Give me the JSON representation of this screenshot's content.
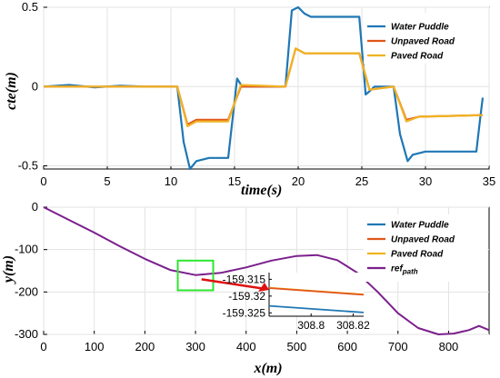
{
  "colors": {
    "water": "#1f77b4",
    "unpaved": "#e0561b",
    "paved": "#f0b323",
    "ref": "#7b1f8c",
    "zoom_box": "#2ee62e",
    "arrow": "#e01010"
  },
  "chart_data": [
    {
      "type": "line",
      "xlabel": "time(s)",
      "ylabel": "cte(m)",
      "xlim": [
        0,
        35
      ],
      "ylim": [
        -0.52,
        0.5
      ],
      "xticks": [
        0,
        5,
        10,
        15,
        20,
        25,
        30,
        35
      ],
      "yticks": [
        -0.5,
        0,
        0.5
      ],
      "ytick_labels": [
        "-0.5",
        "0",
        "0.5"
      ],
      "grid": true,
      "legend_position": "top-right",
      "series": [
        {
          "name": "Water Puddle",
          "x": [
            0,
            2,
            4,
            6,
            8,
            10.5,
            11,
            11.5,
            12,
            13,
            14.5,
            15.2,
            15.6,
            16,
            18,
            19,
            19.5,
            20,
            20.5,
            21,
            24.8,
            25.3,
            25.6,
            26,
            27.5,
            28,
            28.6,
            29,
            30,
            32,
            34,
            34.3,
            34.5
          ],
          "y": [
            0,
            0.01,
            -0.005,
            0.005,
            0,
            0,
            -0.35,
            -0.52,
            -0.47,
            -0.45,
            -0.45,
            0.05,
            0.0,
            0.0,
            0.0,
            0.0,
            0.48,
            0.5,
            0.46,
            0.44,
            0.44,
            -0.05,
            -0.03,
            0.0,
            0.0,
            -0.3,
            -0.47,
            -0.43,
            -0.41,
            -0.41,
            -0.41,
            -0.2,
            -0.07
          ]
        },
        {
          "name": "Unpaved Road",
          "x": [
            0,
            10.5,
            11.3,
            12,
            14.5,
            15.5,
            19,
            19.8,
            20.5,
            24.8,
            25.6,
            27.5,
            28.5,
            29.5,
            34.5
          ],
          "y": [
            0,
            0,
            -0.24,
            -0.21,
            -0.21,
            0.0,
            0.0,
            0.24,
            0.21,
            0.21,
            -0.02,
            0.0,
            -0.21,
            -0.19,
            -0.18
          ]
        },
        {
          "name": "Paved Road",
          "x": [
            0,
            10.5,
            11.3,
            12,
            14.5,
            15.5,
            19,
            19.8,
            20.5,
            24.8,
            25.6,
            27.5,
            28.5,
            29.5,
            34.5
          ],
          "y": [
            0,
            0,
            -0.25,
            -0.22,
            -0.22,
            0.01,
            0.0,
            0.24,
            0.21,
            0.21,
            -0.02,
            0.0,
            -0.22,
            -0.19,
            -0.18
          ]
        }
      ]
    },
    {
      "type": "line",
      "xlabel": "x(m)",
      "ylabel": "y(m)",
      "xlim": [
        0,
        880
      ],
      "ylim": [
        -300,
        0
      ],
      "xticks": [
        0,
        100,
        200,
        300,
        400,
        500,
        600,
        700,
        800
      ],
      "yticks": [
        0,
        -100,
        -200,
        -300
      ],
      "grid": true,
      "legend_position": "top-right",
      "series": [
        {
          "name": "Water Puddle"
        },
        {
          "name": "Unpaved Road"
        },
        {
          "name": "Paved Road"
        },
        {
          "name": "ref",
          "name_subscript": "path",
          "x": [
            0,
            50,
            100,
            150,
            200,
            250,
            300,
            350,
            400,
            450,
            500,
            540,
            580,
            620,
            660,
            700,
            740,
            780,
            810,
            840,
            860,
            880
          ],
          "y": [
            0,
            -30,
            -60,
            -92,
            -122,
            -148,
            -160,
            -155,
            -142,
            -126,
            -115,
            -113,
            -125,
            -155,
            -200,
            -250,
            -285,
            -300,
            -298,
            -290,
            -280,
            -290
          ]
        }
      ],
      "inset": {
        "xlim": [
          308.78,
          308.825
        ],
        "ylim": [
          -159.326,
          -159.313
        ],
        "xticks": [
          308.8,
          308.82
        ],
        "yticks": [
          -159.315,
          -159.32,
          -159.325
        ],
        "series": [
          {
            "name": "Paved Road",
            "x": [
              308.78,
              308.825
            ],
            "y": [
              -159.3175,
              -159.3195
            ]
          },
          {
            "name": "Unpaved Road",
            "x": [
              308.78,
              308.825
            ],
            "y": [
              -159.3176,
              -159.3196
            ]
          },
          {
            "name": "Water Puddle",
            "x": [
              308.78,
              308.825
            ],
            "y": [
              -159.3229,
              -159.3249
            ]
          }
        ]
      }
    }
  ]
}
